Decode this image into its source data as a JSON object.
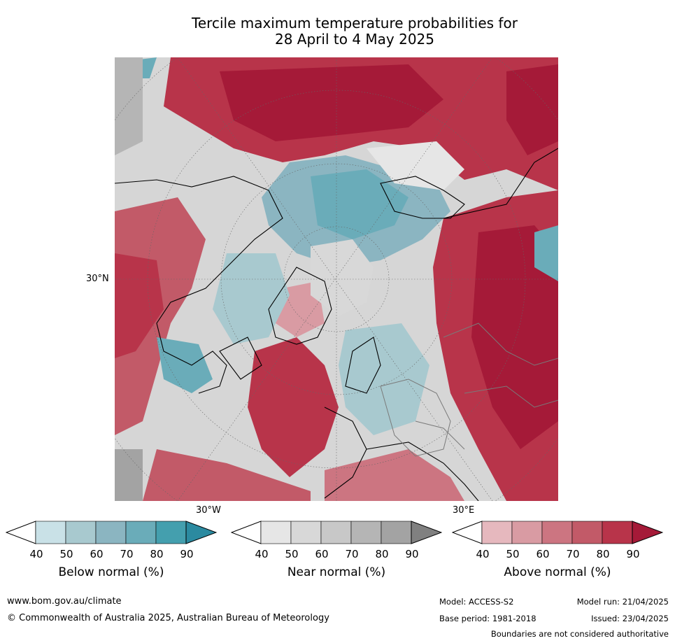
{
  "title": {
    "line1": "Tercile maximum temperature probabilities for",
    "line2": "28 April to 4 May 2025"
  },
  "map": {
    "projection": "north-polar-stereographic",
    "lat_label": "30°N",
    "lon_label_left": "30°W",
    "lon_label_right": "30°E"
  },
  "legend": {
    "below": {
      "label": "Below normal (%)",
      "ticks": [
        "40",
        "50",
        "60",
        "70",
        "80",
        "90"
      ],
      "colors": [
        "#ffffff",
        "#c9e1e7",
        "#a8c9cf",
        "#8bb5c1",
        "#6aacb9",
        "#449fae",
        "#2b8aa0"
      ]
    },
    "near": {
      "label": "Near normal (%)",
      "ticks": [
        "40",
        "50",
        "60",
        "70",
        "80",
        "90"
      ],
      "colors": [
        "#ffffff",
        "#e6e6e6",
        "#d8d8d8",
        "#c8c8c8",
        "#b5b5b5",
        "#a3a3a3",
        "#808080"
      ]
    },
    "above": {
      "label": "Above normal (%)",
      "ticks": [
        "40",
        "50",
        "60",
        "70",
        "80",
        "90"
      ],
      "colors": [
        "#ffffff",
        "#e6b8be",
        "#d99ba3",
        "#cc7581",
        "#c25a68",
        "#b8344a",
        "#a51a38"
      ]
    }
  },
  "footer": {
    "website": "www.bom.gov.au/climate",
    "copyright": "© Commonwealth of Australia 2025, Australian Bureau of Meteorology",
    "model": "Model: ACCESS-S2",
    "base_period": "Base period: 1981-2018",
    "model_run": "Model run: 21/04/2025",
    "issued": "Issued: 23/04/2025",
    "disclaimer": "Boundaries are not considered authoritative"
  }
}
